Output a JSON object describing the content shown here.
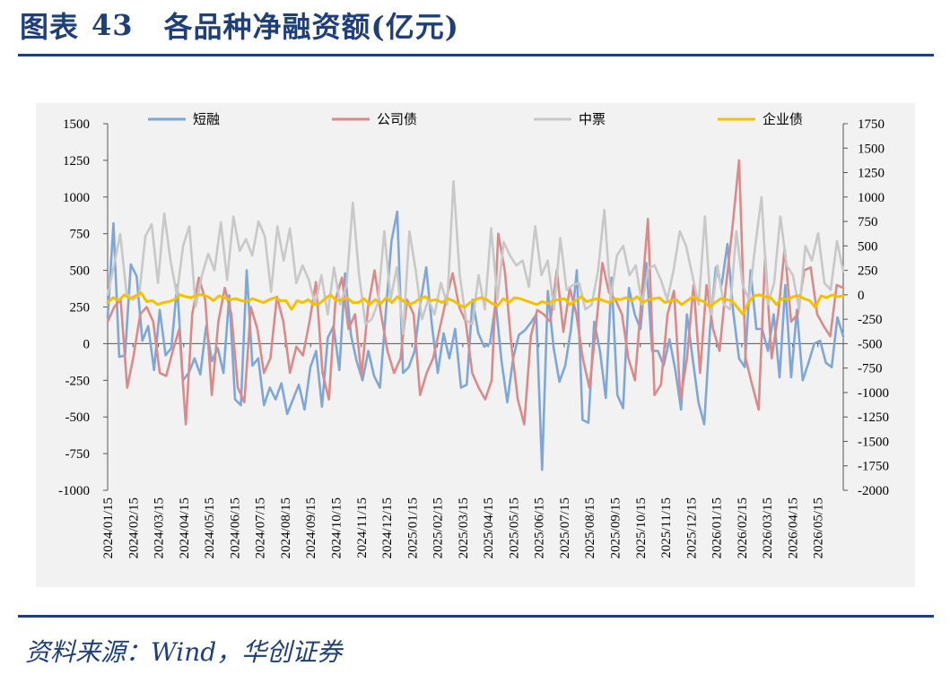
{
  "figure": {
    "label": "图表",
    "number": "43",
    "title": "各品种净融资额(亿元)",
    "source": "资料来源：Wind，华创证券"
  },
  "colors": {
    "title": "#1f3f78",
    "短融": "#7ea6d6",
    "公司债": "#d98a8a",
    "中票": "#c8c8c8",
    "企业债": "#f5c000"
  },
  "chart_data": {
    "type": "line",
    "x_tick_labels": [
      "2024/01/15",
      "2024/02/15",
      "2024/03/15",
      "2024/04/15",
      "2024/05/15",
      "2024/06/15",
      "2024/07/15",
      "2024/08/15",
      "2024/09/15",
      "2024/10/15",
      "2024/11/15",
      "2024/12/15",
      "2025/01/15",
      "2025/02/15",
      "2025/03/15",
      "2025/04/15",
      "2025/05/15",
      "2025/06/15",
      "2025/07/15",
      "2025/08/15",
      "2025/09/15",
      "2025/10/15",
      "2025/11/15",
      "2025/12/15",
      "2026/01/15",
      "2026/02/15",
      "2026/03/15",
      "2026/04/15",
      "2026/05/15"
    ],
    "left_axis": {
      "ylim": [
        -1000,
        1500
      ],
      "ticks": [
        -1000,
        -750,
        -500,
        -250,
        0,
        250,
        500,
        750,
        1000,
        1250,
        1500
      ]
    },
    "right_axis": {
      "ylim": [
        -2000,
        1750
      ],
      "ticks": [
        -2000,
        -1750,
        -1500,
        -1250,
        -1000,
        -750,
        -500,
        -250,
        0,
        250,
        500,
        750,
        1000,
        1250,
        1500,
        1750
      ]
    },
    "legend_position": "top",
    "series": [
      {
        "name": "短融",
        "axis": "left",
        "values": [
          180,
          820,
          -90,
          -80,
          540,
          460,
          20,
          120,
          -180,
          230,
          -80,
          -30,
          400,
          -250,
          -200,
          -100,
          -210,
          120,
          -120,
          -30,
          -200,
          330,
          -380,
          -420,
          500,
          -150,
          -100,
          -420,
          -300,
          -380,
          -270,
          -480,
          -380,
          -280,
          -450,
          -160,
          -50,
          -430,
          40,
          120,
          -180,
          480,
          60,
          -120,
          -250,
          -50,
          -220,
          -300,
          200,
          700,
          900,
          -200,
          -160,
          -50,
          280,
          520,
          120,
          -200,
          70,
          -100,
          100,
          -300,
          -280,
          300,
          70,
          -20,
          0,
          280,
          -120,
          -400,
          -100,
          60,
          90,
          140,
          200,
          -860,
          360,
          -30,
          -260,
          -150,
          100,
          500,
          -520,
          -540,
          150,
          -50,
          -370,
          450,
          -350,
          -440,
          380,
          200,
          100,
          550,
          -50,
          -50,
          -150,
          30,
          -180,
          -450,
          200,
          -100,
          -400,
          -550,
          100,
          520,
          400,
          680,
          220,
          -100,
          -160,
          500,
          100,
          100,
          -50,
          200,
          -230,
          400,
          -230,
          230,
          -250,
          -130,
          0,
          20,
          -130,
          -160,
          180,
          50
        ],
        "note": "approximate weekly values"
      },
      {
        "name": "公司债",
        "axis": "left",
        "values": [
          150,
          250,
          300,
          -300,
          -80,
          200,
          250,
          150,
          -200,
          -220,
          -50,
          100,
          -550,
          200,
          450,
          300,
          -350,
          150,
          380,
          200,
          -300,
          -400,
          250,
          100,
          -200,
          -100,
          320,
          150,
          -200,
          -20,
          -80,
          150,
          420,
          -200,
          -380,
          300,
          450,
          100,
          200,
          -220,
          250,
          500,
          200,
          -50,
          -200,
          -100,
          300,
          200,
          -350,
          -200,
          -100,
          100,
          300,
          480,
          250,
          150,
          -200,
          -300,
          -380,
          -250,
          750,
          500,
          0,
          -380,
          -550,
          50,
          230,
          200,
          150,
          500,
          80,
          380,
          200,
          -100,
          -300,
          100,
          550,
          350,
          300,
          200,
          -100,
          -250,
          300,
          850,
          -350,
          -280,
          200,
          360,
          -380,
          -100,
          400,
          -200,
          400,
          100,
          -50,
          400,
          800,
          1250,
          -100,
          -280,
          -450,
          600,
          -100,
          200,
          650,
          150,
          200,
          500,
          520,
          200,
          120,
          50,
          400,
          380
        ],
        "note": "approximate weekly values"
      },
      {
        "name": "中票",
        "axis": "right",
        "values": [
          0,
          300,
          620,
          20,
          -50,
          -10,
          600,
          720,
          120,
          830,
          350,
          0,
          500,
          700,
          -120,
          200,
          420,
          250,
          740,
          150,
          800,
          450,
          570,
          400,
          750,
          600,
          30,
          700,
          350,
          680,
          120,
          300,
          150,
          -100,
          200,
          -200,
          280,
          -100,
          100,
          940,
          200,
          -300,
          -250,
          -80,
          650,
          -50,
          280,
          -400,
          650,
          250,
          -250,
          -50,
          -200,
          120,
          -100,
          1160,
          200,
          -260,
          -300,
          200,
          -150,
          680,
          -50,
          540,
          400,
          300,
          350,
          80,
          700,
          200,
          350,
          -150,
          580,
          50,
          100,
          120,
          -150,
          -100,
          250,
          870,
          -50,
          400,
          500,
          200,
          300,
          -100,
          270,
          300,
          150,
          -50,
          250,
          650,
          500,
          200,
          -100,
          800,
          -200,
          300,
          -100,
          -150,
          650,
          100,
          -50,
          500,
          1000,
          -100,
          120,
          800,
          300,
          200,
          -150,
          500,
          350,
          630,
          120,
          50,
          550,
          240
        ],
        "note": "approximate weekly values"
      },
      {
        "name": "企业债",
        "axis": "right",
        "values": [
          -80,
          -30,
          -60,
          0,
          -40,
          -10,
          20,
          -70,
          -60,
          -100,
          -80,
          -70,
          -50,
          0,
          -20,
          -30,
          0,
          0,
          -20,
          -60,
          -10,
          -30,
          -50,
          -40,
          -60,
          -70,
          -40,
          -60,
          -80,
          -50,
          -30,
          -60,
          -60,
          -150,
          -60,
          -80,
          -50,
          -100,
          -90,
          -40,
          0,
          -60,
          -50,
          -30,
          -80,
          -80,
          -40,
          -100,
          -50,
          -90,
          -30,
          -80,
          -20,
          -60,
          -100,
          -80,
          -40,
          -20,
          -60,
          -50,
          -80,
          -40,
          -60,
          -100,
          -130,
          -80,
          -50,
          -30,
          -50,
          -90,
          -110,
          -40,
          -80,
          -30,
          -40,
          -60,
          -80,
          -100,
          -70,
          -90,
          -60,
          -50,
          -40,
          -100,
          -60,
          -20,
          -70,
          -50,
          -40,
          -60,
          -80,
          -40,
          -50,
          -30,
          -60,
          -20,
          -80,
          -50,
          -40,
          -30,
          -80,
          -60,
          -50,
          -100,
          -60,
          -20,
          -50,
          -70,
          -120,
          -80,
          -40,
          -50,
          -60,
          -130,
          -200,
          -80,
          -10,
          0,
          -20,
          -30,
          -100,
          -40,
          -50,
          -20,
          -10,
          -40,
          -60,
          -130,
          -10,
          -30,
          0,
          -20,
          -10
        ]
      }
    ]
  }
}
